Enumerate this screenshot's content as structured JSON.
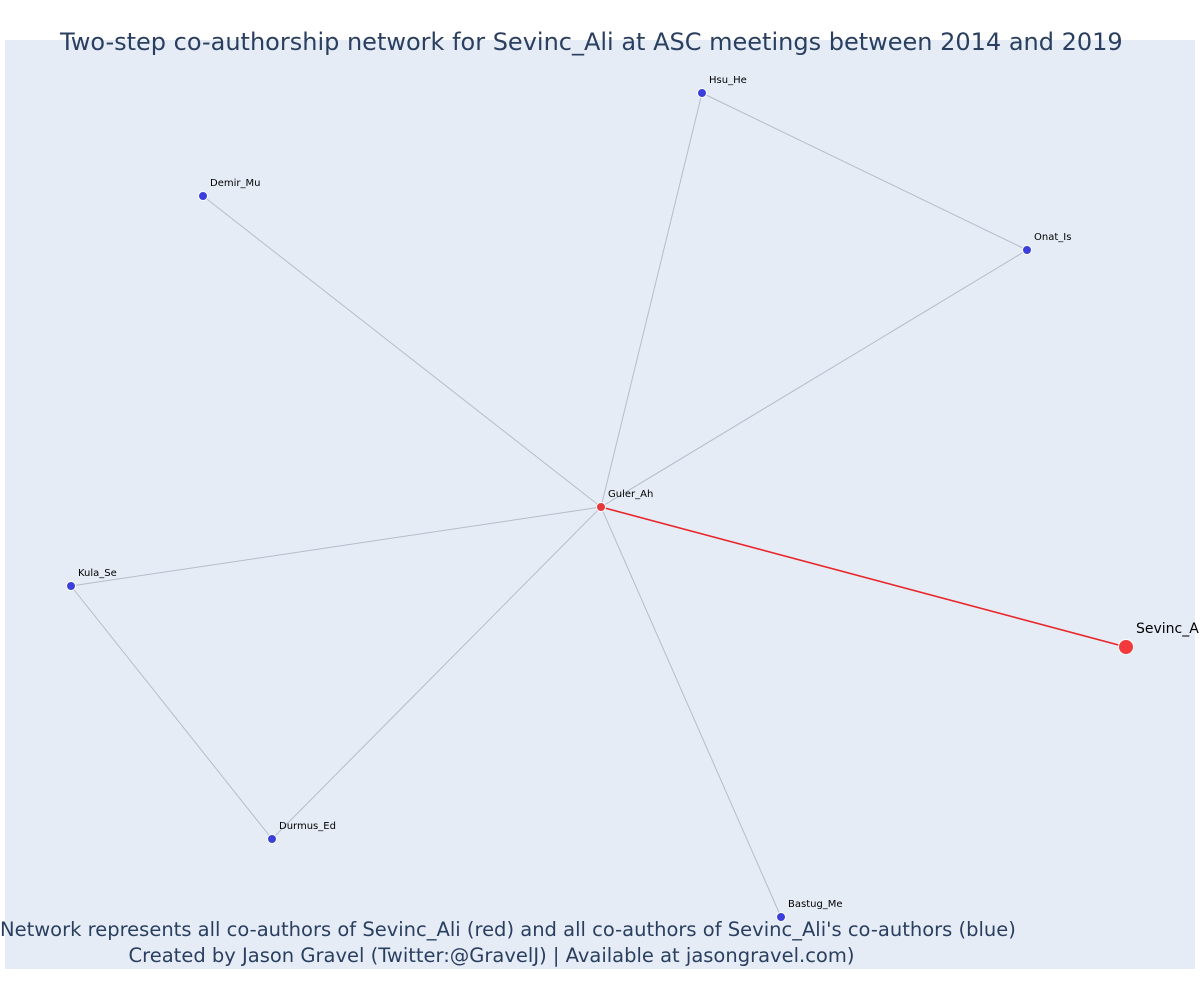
{
  "chart_data": {
    "type": "network",
    "title": "Two-step co-authorship network for Sevinc_Ali at ASC meetings between 2014 and 2019",
    "footer": [
      "Network represents all co-authors of Sevinc_Ali (red) and all co-authors of Sevinc_Ali's co-authors (blue)",
      "Created by Jason Gravel (Twitter:@GravelJ) | Available at jasongravel.com)"
    ],
    "nodes": [
      {
        "id": "Sevinc_Ali",
        "label": "Sevinc_A",
        "group": "focal",
        "color": "#f2393b"
      },
      {
        "id": "Guler_Ah",
        "label": "Guler_Ah",
        "group": "coauthor",
        "color": "#e8373a"
      },
      {
        "id": "Hsu_He",
        "label": "Hsu_He",
        "group": "second_step",
        "color": "#3b3fdc"
      },
      {
        "id": "Demir_Mu",
        "label": "Demir_Mu",
        "group": "second_step",
        "color": "#3b3fdc"
      },
      {
        "id": "Onat_Is",
        "label": "Onat_Is",
        "group": "second_step",
        "color": "#3b3fdc"
      },
      {
        "id": "Kula_Se",
        "label": "Kula_Se",
        "group": "second_step",
        "color": "#3b3fdc"
      },
      {
        "id": "Durmus_Ed",
        "label": "Durmus_Ed",
        "group": "second_step",
        "color": "#3b3fdc"
      },
      {
        "id": "Bastug_Me",
        "label": "Bastug_Me",
        "group": "second_step",
        "color": "#3b3fdc"
      }
    ],
    "edges": [
      {
        "source": "Guler_Ah",
        "target": "Sevinc_Ali",
        "color": "#e8262a"
      },
      {
        "source": "Guler_Ah",
        "target": "Hsu_He",
        "color": "#b6bccb"
      },
      {
        "source": "Guler_Ah",
        "target": "Demir_Mu",
        "color": "#b6bccb"
      },
      {
        "source": "Guler_Ah",
        "target": "Onat_Is",
        "color": "#b6bccb"
      },
      {
        "source": "Guler_Ah",
        "target": "Kula_Se",
        "color": "#b6bccb"
      },
      {
        "source": "Guler_Ah",
        "target": "Durmus_Ed",
        "color": "#b6bccb"
      },
      {
        "source": "Guler_Ah",
        "target": "Bastug_Me",
        "color": "#b6bccb"
      },
      {
        "source": "Hsu_He",
        "target": "Onat_Is",
        "color": "#b6bccb"
      },
      {
        "source": "Kula_Se",
        "target": "Durmus_Ed",
        "color": "#b6bccb"
      }
    ],
    "colors": {
      "plot_background": "#e5ecf6",
      "text": "#2a3f5f"
    }
  }
}
